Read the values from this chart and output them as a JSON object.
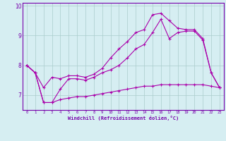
{
  "xlabel": "Windchill (Refroidissement éolien,°C)",
  "background_color": "#d6eef2",
  "line_color": "#aa00aa",
  "grid_color": "#aacccc",
  "text_color": "#7700aa",
  "xlim": [
    -0.5,
    23.5
  ],
  "ylim": [
    6.5,
    10.1
  ],
  "yticks": [
    7,
    8,
    9,
    10
  ],
  "xticks": [
    0,
    1,
    2,
    3,
    4,
    5,
    6,
    7,
    8,
    9,
    10,
    11,
    12,
    13,
    14,
    15,
    16,
    17,
    18,
    19,
    20,
    21,
    22,
    23
  ],
  "series1_x": [
    0,
    1,
    2,
    3,
    4,
    5,
    6,
    7,
    8,
    9,
    10,
    11,
    12,
    13,
    14,
    15,
    16,
    17,
    18,
    19,
    20,
    21,
    22,
    23
  ],
  "series1_y": [
    8.0,
    7.75,
    7.25,
    7.6,
    7.55,
    7.65,
    7.65,
    7.6,
    7.7,
    7.9,
    8.25,
    8.55,
    8.8,
    9.1,
    9.2,
    9.7,
    9.75,
    9.5,
    9.25,
    9.2,
    9.2,
    8.9,
    7.75,
    7.25
  ],
  "series2_x": [
    0,
    1,
    2,
    3,
    4,
    5,
    6,
    7,
    8,
    9,
    10,
    11,
    12,
    13,
    14,
    15,
    16,
    17,
    18,
    19,
    20,
    21,
    22,
    23
  ],
  "series2_y": [
    8.0,
    7.75,
    6.75,
    6.75,
    7.2,
    7.55,
    7.55,
    7.5,
    7.6,
    7.75,
    7.85,
    8.0,
    8.25,
    8.55,
    8.7,
    9.1,
    9.55,
    8.9,
    9.1,
    9.15,
    9.15,
    8.85,
    7.75,
    7.25
  ],
  "series3_x": [
    0,
    1,
    2,
    3,
    4,
    5,
    6,
    7,
    8,
    9,
    10,
    11,
    12,
    13,
    14,
    15,
    16,
    17,
    18,
    19,
    20,
    21,
    22,
    23
  ],
  "series3_y": [
    8.0,
    7.75,
    6.75,
    6.75,
    6.85,
    6.9,
    6.95,
    6.95,
    7.0,
    7.05,
    7.1,
    7.15,
    7.2,
    7.25,
    7.3,
    7.3,
    7.35,
    7.35,
    7.35,
    7.35,
    7.35,
    7.35,
    7.3,
    7.25
  ],
  "spine_color": "#7700aa"
}
